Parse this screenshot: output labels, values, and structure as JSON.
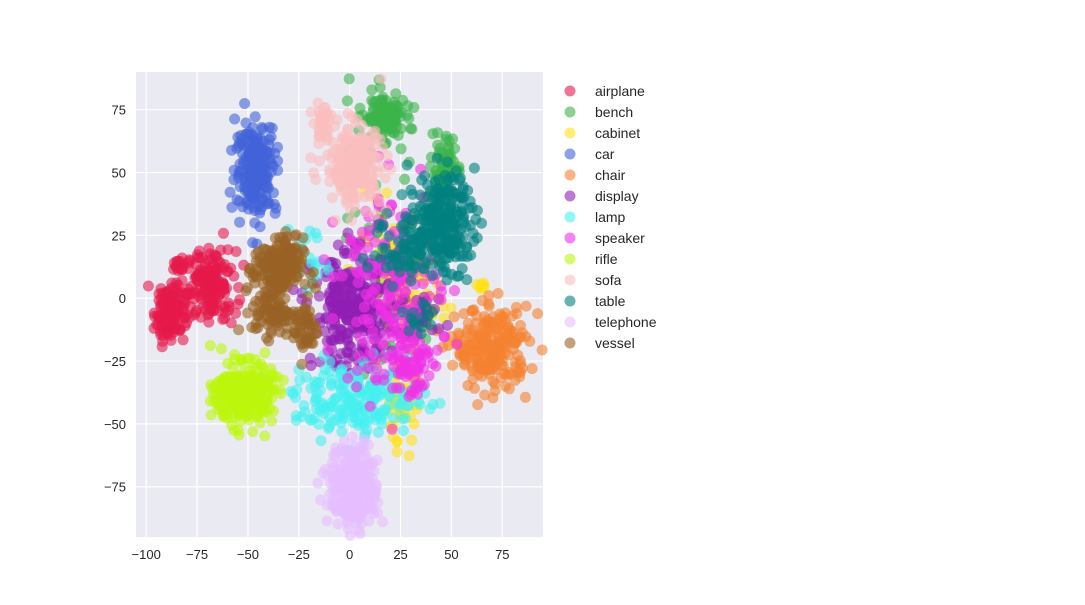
{
  "chart_data": {
    "type": "scatter",
    "title": "",
    "xlabel": "",
    "ylabel": "",
    "xlim": [
      -105,
      95
    ],
    "ylim": [
      -95,
      90
    ],
    "x_ticks": [
      -100,
      -75,
      -50,
      -25,
      0,
      25,
      50,
      75
    ],
    "y_ticks": [
      -75,
      -50,
      -25,
      0,
      25,
      50,
      75
    ],
    "x_tick_labels": [
      "−100",
      "−75",
      "−50",
      "−25",
      "0",
      "25",
      "50",
      "75"
    ],
    "y_tick_labels": [
      "−75",
      "−50",
      "−25",
      "0",
      "25",
      "50",
      "75"
    ],
    "grid": true,
    "legend_position": "outside-right-top",
    "series": [
      {
        "name": "airplane",
        "color": "#e6194b",
        "clusters": [
          {
            "cx": -68,
            "cy": 5,
            "sx": 6,
            "sy": 7,
            "n": 160
          },
          {
            "cx": -88,
            "cy": -5,
            "sx": 4,
            "sy": 6,
            "n": 130
          },
          {
            "cx": -84,
            "cy": 13,
            "sx": 1.5,
            "sy": 1.5,
            "n": 15
          }
        ]
      },
      {
        "name": "bench",
        "color": "#3cb44b",
        "clusters": [
          {
            "cx": 17,
            "cy": 72,
            "sx": 5,
            "sy": 4,
            "n": 140
          },
          {
            "cx": 46,
            "cy": 50,
            "sx": 3,
            "sy": 7,
            "n": 90
          },
          {
            "cx": 20,
            "cy": 40,
            "sx": 14,
            "sy": 25,
            "n": 25
          },
          {
            "cx": 20,
            "cy": -15,
            "sx": 12,
            "sy": 12,
            "n": 15
          }
        ]
      },
      {
        "name": "cabinet",
        "color": "#ffe119",
        "clusters": [
          {
            "cx": 25,
            "cy": 0,
            "sx": 12,
            "sy": 15,
            "n": 100
          },
          {
            "cx": 25,
            "cy": -42,
            "sx": 4,
            "sy": 8,
            "n": 50
          },
          {
            "cx": 65,
            "cy": 5,
            "sx": 1.2,
            "sy": 1.5,
            "n": 10
          }
        ]
      },
      {
        "name": "car",
        "color": "#4363d8",
        "clusters": [
          {
            "cx": -46,
            "cy": 52,
            "sx": 5,
            "sy": 9,
            "n": 220
          }
        ]
      },
      {
        "name": "chair",
        "color": "#f58231",
        "clusters": [
          {
            "cx": 70,
            "cy": -20,
            "sx": 9,
            "sy": 8,
            "n": 240
          }
        ]
      },
      {
        "name": "display",
        "color": "#911eb4",
        "clusters": [
          {
            "cx": 2,
            "cy": -5,
            "sx": 10,
            "sy": 11,
            "n": 300
          },
          {
            "cx": 35,
            "cy": -8,
            "sx": 6,
            "sy": 5,
            "n": 30
          }
        ]
      },
      {
        "name": "lamp",
        "color": "#46f0f0",
        "clusters": [
          {
            "cx": 5,
            "cy": -40,
            "sx": 16,
            "sy": 7,
            "n": 200
          },
          {
            "cx": -20,
            "cy": 15,
            "sx": 8,
            "sy": 8,
            "n": 20
          }
        ]
      },
      {
        "name": "speaker",
        "color": "#f032e6",
        "clusters": [
          {
            "cx": 20,
            "cy": 5,
            "sx": 12,
            "sy": 20,
            "n": 200
          },
          {
            "cx": 30,
            "cy": -25,
            "sx": 5,
            "sy": 8,
            "n": 60
          }
        ]
      },
      {
        "name": "rifle",
        "color": "#bcf60c",
        "clusters": [
          {
            "cx": -52,
            "cy": -38,
            "sx": 7,
            "sy": 6,
            "n": 280
          }
        ]
      },
      {
        "name": "sofa",
        "color": "#fabebe",
        "clusters": [
          {
            "cx": 2,
            "cy": 53,
            "sx": 7,
            "sy": 8,
            "n": 230
          },
          {
            "cx": -13,
            "cy": 70,
            "sx": 2.5,
            "sy": 3,
            "n": 40
          }
        ]
      },
      {
        "name": "table",
        "color": "#008080",
        "clusters": [
          {
            "cx": 45,
            "cy": 30,
            "sx": 8,
            "sy": 10,
            "n": 220
          },
          {
            "cx": 30,
            "cy": 20,
            "sx": 10,
            "sy": 6,
            "n": 80
          },
          {
            "cx": 35,
            "cy": -8,
            "sx": 4,
            "sy": 4,
            "n": 15
          }
        ]
      },
      {
        "name": "telephone",
        "color": "#e6beff",
        "clusters": [
          {
            "cx": 2,
            "cy": -75,
            "sx": 6,
            "sy": 8,
            "n": 260
          }
        ]
      },
      {
        "name": "vessel",
        "color": "#9a6324",
        "clusters": [
          {
            "cx": -35,
            "cy": 12,
            "sx": 6,
            "sy": 6,
            "n": 180
          },
          {
            "cx": -38,
            "cy": -5,
            "sx": 5,
            "sy": 5,
            "n": 90
          },
          {
            "cx": -22,
            "cy": -12,
            "sx": 3,
            "sy": 6,
            "n": 50
          }
        ]
      }
    ]
  }
}
